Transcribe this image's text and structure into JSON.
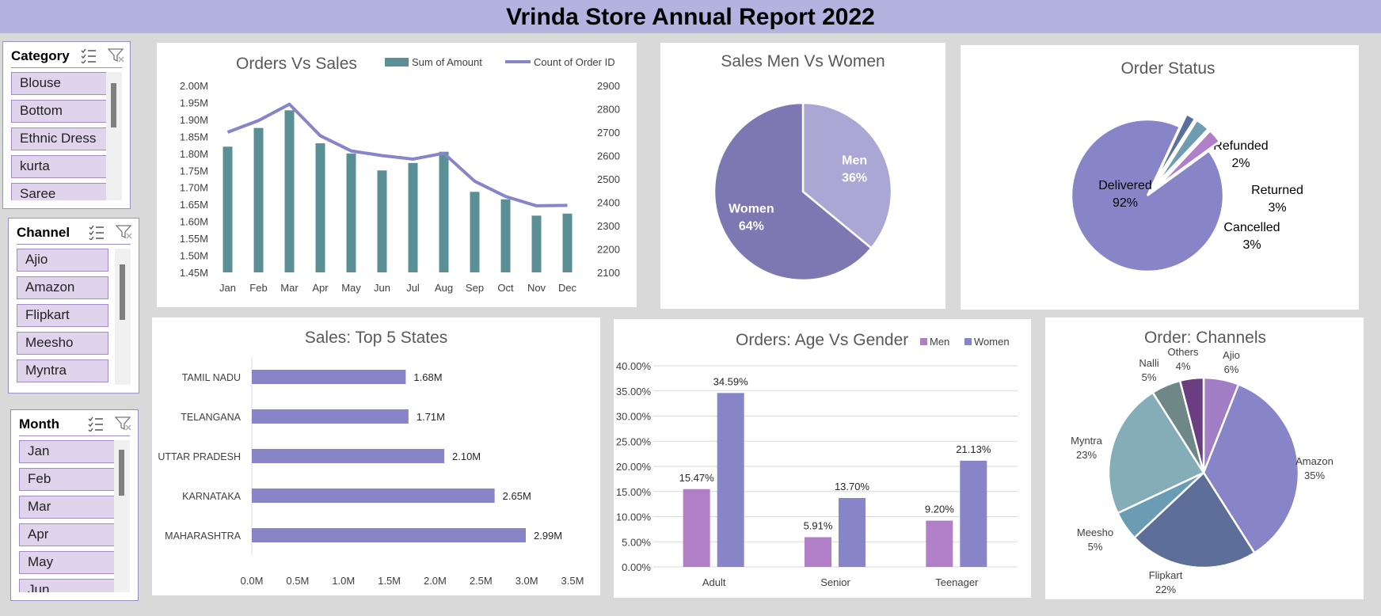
{
  "report_title": "Vrinda Store Annual Report 2022",
  "slicers": {
    "category": {
      "title": "Category",
      "items": [
        "Blouse",
        "Bottom",
        "Ethnic Dress",
        "kurta",
        "Saree"
      ]
    },
    "channel": {
      "title": "Channel",
      "items": [
        "Ajio",
        "Amazon",
        "Flipkart",
        "Meesho",
        "Myntra"
      ]
    },
    "month": {
      "title": "Month",
      "items": [
        "Jan",
        "Feb",
        "Mar",
        "Apr",
        "May",
        "Jun"
      ]
    }
  },
  "colors": {
    "teal": "#5b8f96",
    "purple": "#8884c8",
    "lilac": "#b07fc7",
    "title_bar": "#b4b2de"
  },
  "chart_data": [
    {
      "id": "orders_vs_sales",
      "type": "bar+line",
      "title": "Orders Vs Sales",
      "categories": [
        "Jan",
        "Feb",
        "Mar",
        "Apr",
        "May",
        "Jun",
        "Jul",
        "Aug",
        "Sep",
        "Oct",
        "Nov",
        "Dec"
      ],
      "series": [
        {
          "name": "Sum of Amount",
          "type": "bar",
          "axis": "left",
          "values": [
            1.82,
            1.875,
            1.927,
            1.83,
            1.8,
            1.75,
            1.772,
            1.805,
            1.687,
            1.665,
            1.617,
            1.623
          ]
        },
        {
          "name": "Count of Order ID",
          "type": "line",
          "axis": "right",
          "values": [
            2700,
            2750,
            2820,
            2685,
            2620,
            2600,
            2585,
            2610,
            2490,
            2425,
            2385,
            2387
          ]
        }
      ],
      "ylim_left": [
        1.45,
        2.0
      ],
      "yticks_left": [
        "1.45M",
        "1.50M",
        "1.55M",
        "1.60M",
        "1.65M",
        "1.70M",
        "1.75M",
        "1.80M",
        "1.85M",
        "1.90M",
        "1.95M",
        "2.00M"
      ],
      "ylim_right": [
        2100,
        2900
      ],
      "yticks_right": [
        "2100",
        "2200",
        "2300",
        "2400",
        "2500",
        "2600",
        "2700",
        "2800",
        "2900"
      ],
      "legend": "top"
    },
    {
      "id": "sales_men_women",
      "type": "pie",
      "title": "Sales Men Vs Women",
      "slices": [
        {
          "label": "Men",
          "pct_text": "36%",
          "value": 36,
          "color": "#aba7d5"
        },
        {
          "label": "Women",
          "pct_text": "64%",
          "value": 64,
          "color": "#7d77b2"
        }
      ]
    },
    {
      "id": "order_status",
      "type": "pie",
      "title": "Order Status",
      "slices": [
        {
          "label": "Delivered",
          "pct_text": "92%",
          "value": 92,
          "color": "#8884c8"
        },
        {
          "label": "Refunded",
          "pct_text": "2%",
          "value": 2,
          "color": "#5a6f99"
        },
        {
          "label": "Returned",
          "pct_text": "3%",
          "value": 3,
          "color": "#6f9cb0"
        },
        {
          "label": "Cancelled",
          "pct_text": "3%",
          "value": 3,
          "color": "#b07fc7"
        }
      ]
    },
    {
      "id": "top5_states",
      "type": "bar",
      "orientation": "horizontal",
      "title": "Sales: Top 5 States",
      "categories": [
        "TAMIL NADU",
        "TELANGANA",
        "UTTAR PRADESH",
        "KARNATAKA",
        "MAHARASHTRA"
      ],
      "values": [
        1.68,
        1.71,
        2.1,
        2.65,
        2.99
      ],
      "value_labels": [
        "1.68M",
        "1.71M",
        "2.10M",
        "2.65M",
        "2.99M"
      ],
      "xlim": [
        0,
        3.5
      ],
      "xticks": [
        "0.0M",
        "0.5M",
        "1.0M",
        "1.5M",
        "2.0M",
        "2.5M",
        "3.0M",
        "3.5M"
      ]
    },
    {
      "id": "age_vs_gender",
      "type": "bar",
      "title": "Orders: Age Vs Gender",
      "categories": [
        "Adult",
        "Senior",
        "Teenager"
      ],
      "series": [
        {
          "name": "Men",
          "values": [
            15.47,
            5.91,
            9.2
          ],
          "labels": [
            "15.47%",
            "5.91%",
            "9.20%"
          ],
          "color": "#b07fc7"
        },
        {
          "name": "Women",
          "values": [
            34.59,
            13.7,
            21.13
          ],
          "labels": [
            "34.59%",
            "13.70%",
            "21.13%"
          ],
          "color": "#8884c8"
        }
      ],
      "ylim": [
        0,
        40
      ],
      "yticks": [
        "0.00%",
        "5.00%",
        "10.00%",
        "15.00%",
        "20.00%",
        "25.00%",
        "30.00%",
        "35.00%",
        "40.00%"
      ],
      "grid": true,
      "legend": "top-right"
    },
    {
      "id": "order_channels",
      "type": "pie",
      "title": "Order: Channels",
      "slices": [
        {
          "label": "Ajio",
          "pct_text": "6%",
          "value": 6,
          "color": "#a27fc4"
        },
        {
          "label": "Amazon",
          "pct_text": "35%",
          "value": 35,
          "color": "#8884c8"
        },
        {
          "label": "Flipkart",
          "pct_text": "22%",
          "value": 22,
          "color": "#5d6f98"
        },
        {
          "label": "Meesho",
          "pct_text": "5%",
          "value": 5,
          "color": "#6a9db3"
        },
        {
          "label": "Myntra",
          "pct_text": "23%",
          "value": 23,
          "color": "#84adb7"
        },
        {
          "label": "Nalli",
          "pct_text": "5%",
          "value": 5,
          "color": "#6f8787"
        },
        {
          "label": "Others",
          "pct_text": "4%",
          "value": 4,
          "color": "#6a3e80"
        }
      ]
    }
  ]
}
